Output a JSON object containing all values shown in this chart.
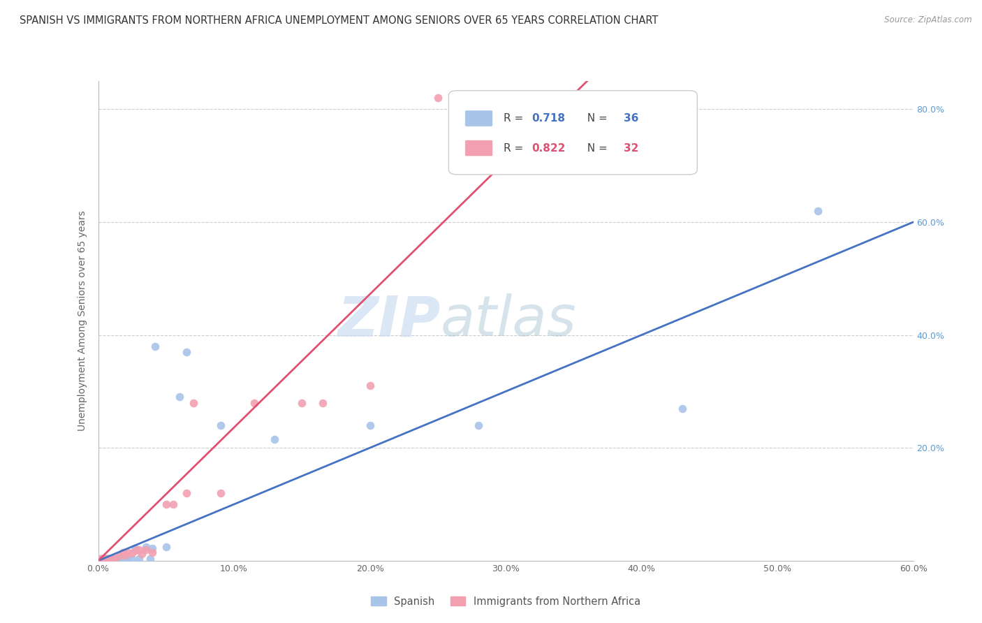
{
  "title": "SPANISH VS IMMIGRANTS FROM NORTHERN AFRICA UNEMPLOYMENT AMONG SENIORS OVER 65 YEARS CORRELATION CHART",
  "source": "Source: ZipAtlas.com",
  "ylabel": "Unemployment Among Seniors over 65 years",
  "label_spanish": "Spanish",
  "label_immigrants": "Immigrants from Northern Africa",
  "xlim": [
    0.0,
    0.6
  ],
  "ylim": [
    0.0,
    0.85
  ],
  "x_ticks": [
    0.0,
    0.1,
    0.2,
    0.3,
    0.4,
    0.5,
    0.6
  ],
  "x_tick_labels": [
    "0.0%",
    "10.0%",
    "20.0%",
    "30.0%",
    "40.0%",
    "50.0%",
    "60.0%"
  ],
  "y_ticks_right": [
    0.0,
    0.2,
    0.4,
    0.6,
    0.8
  ],
  "y_tick_labels_right": [
    "",
    "20.0%",
    "40.0%",
    "60.0%",
    "80.0%"
  ],
  "r_spanish": 0.718,
  "n_spanish": 36,
  "r_immigrants": 0.822,
  "n_immigrants": 32,
  "spanish_color": "#a8c4e8",
  "immigrants_color": "#f2a0b0",
  "trend_spanish_color": "#4472c4",
  "trend_immigrants_color": "#e05070",
  "watermark_zip": "ZIP",
  "watermark_atlas": "atlas",
  "background_color": "#ffffff",
  "grid_color": "#cccccc",
  "title_fontsize": 10.5,
  "axis_label_fontsize": 10,
  "tick_fontsize": 9,
  "spanish_scatter_x": [
    0.002,
    0.003,
    0.004,
    0.005,
    0.006,
    0.007,
    0.008,
    0.009,
    0.01,
    0.011,
    0.012,
    0.013,
    0.014,
    0.015,
    0.016,
    0.017,
    0.018,
    0.019,
    0.02,
    0.022,
    0.025,
    0.027,
    0.03,
    0.035,
    0.038,
    0.04,
    0.042,
    0.05,
    0.06,
    0.065,
    0.09,
    0.13,
    0.2,
    0.28,
    0.43,
    0.53
  ],
  "spanish_scatter_y": [
    0.004,
    0.003,
    0.003,
    0.003,
    0.004,
    0.003,
    0.003,
    0.004,
    0.003,
    0.004,
    0.004,
    0.003,
    0.004,
    0.004,
    0.003,
    0.004,
    0.004,
    0.004,
    0.004,
    0.004,
    0.004,
    0.022,
    0.004,
    0.025,
    0.004,
    0.022,
    0.38,
    0.025,
    0.29,
    0.37,
    0.24,
    0.215,
    0.24,
    0.24,
    0.27,
    0.62
  ],
  "immigrants_scatter_x": [
    0.002,
    0.003,
    0.004,
    0.005,
    0.006,
    0.007,
    0.008,
    0.009,
    0.01,
    0.011,
    0.012,
    0.015,
    0.018,
    0.02,
    0.022,
    0.025,
    0.028,
    0.03,
    0.032,
    0.035,
    0.04,
    0.05,
    0.055,
    0.065,
    0.07,
    0.09,
    0.115,
    0.15,
    0.165,
    0.2,
    0.25,
    0.305
  ],
  "immigrants_scatter_y": [
    0.003,
    0.003,
    0.003,
    0.004,
    0.003,
    0.003,
    0.003,
    0.004,
    0.003,
    0.003,
    0.004,
    0.008,
    0.015,
    0.01,
    0.015,
    0.013,
    0.018,
    0.02,
    0.012,
    0.02,
    0.015,
    0.1,
    0.1,
    0.12,
    0.28,
    0.12,
    0.28,
    0.28,
    0.28,
    0.31,
    0.82,
    0.82
  ],
  "sp_trend_x0": 0.0,
  "sp_trend_y0": 0.0,
  "sp_trend_x1": 0.6,
  "sp_trend_y1": 0.6,
  "im_trend_x0": 0.0,
  "im_trend_y0": 0.0,
  "im_trend_x1": 0.36,
  "im_trend_y1": 0.85
}
